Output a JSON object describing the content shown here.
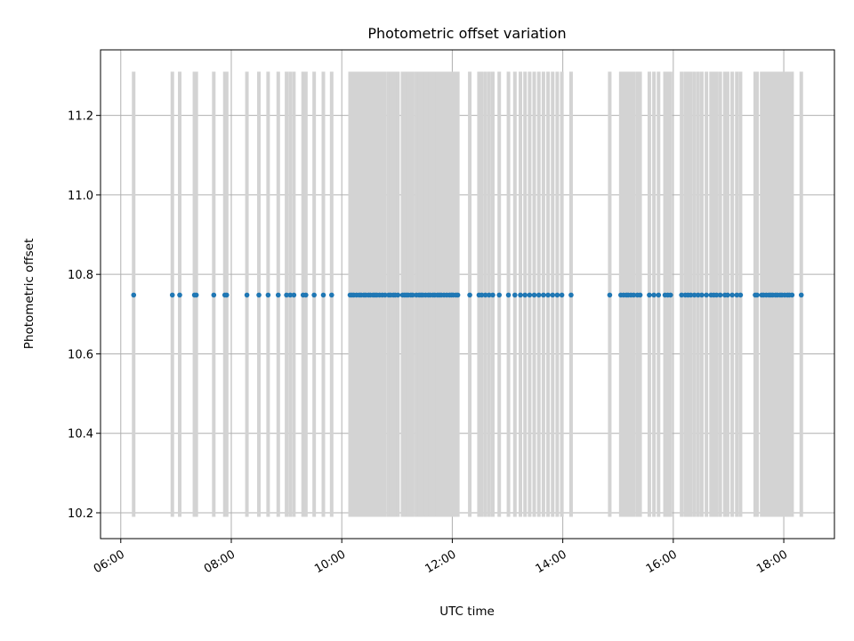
{
  "chart_data": {
    "type": "scatter",
    "title": "Photometric offset variation",
    "xlabel": "UTC time",
    "ylabel": "Photometric offset",
    "x_type": "time",
    "xlim": [
      "05:38",
      "18:55"
    ],
    "ylim": [
      10.135,
      11.365
    ],
    "x_ticks": [
      "06:00",
      "08:00",
      "10:00",
      "12:00",
      "14:00",
      "16:00",
      "18:00"
    ],
    "y_ticks": [
      "10.2",
      "10.4",
      "10.6",
      "10.8",
      "11.0",
      "11.2"
    ],
    "grid": true,
    "error_band": [
      10.19,
      11.31
    ],
    "colors": {
      "points": "#1f77b4",
      "error_bars": "#d3d3d3",
      "grid": "#b0b0b0"
    },
    "series": [
      {
        "y": 10.748,
        "x": [
          "06:14",
          "06:56",
          "07:04",
          "07:20",
          "07:22",
          "07:41",
          "07:53",
          "07:55",
          "08:17",
          "08:30",
          "08:40",
          "08:51",
          "09:00",
          "09:04",
          "09:08",
          "09:18",
          "09:21",
          "09:30",
          "09:40",
          "09:49",
          "10:09",
          "10:11",
          "10:13",
          "10:16",
          "10:19",
          "10:21",
          "10:24",
          "10:26",
          "10:29",
          "10:31",
          "10:34",
          "10:36",
          "10:38",
          "10:41",
          "10:44",
          "10:47",
          "10:51",
          "10:53",
          "10:56",
          "10:58",
          "11:01",
          "11:06",
          "11:08",
          "11:10",
          "11:12",
          "11:15",
          "11:17",
          "11:21",
          "11:24",
          "11:26",
          "11:28",
          "11:31",
          "11:34",
          "11:36",
          "11:39",
          "11:41",
          "11:44",
          "11:46",
          "11:48",
          "11:51",
          "11:54",
          "11:57",
          "11:59",
          "12:01",
          "12:04",
          "12:06",
          "12:19",
          "12:29",
          "12:32",
          "12:36",
          "12:40",
          "12:44",
          "12:51",
          "13:01",
          "13:08",
          "13:14",
          "13:19",
          "13:24",
          "13:29",
          "13:34",
          "13:39",
          "13:44",
          "13:49",
          "13:54",
          "13:59",
          "14:09",
          "14:51",
          "15:03",
          "15:06",
          "15:09",
          "15:11",
          "15:14",
          "15:17",
          "15:21",
          "15:24",
          "15:34",
          "15:39",
          "15:44",
          "15:51",
          "15:54",
          "15:57",
          "16:09",
          "16:13",
          "16:16",
          "16:19",
          "16:23",
          "16:27",
          "16:31",
          "16:36",
          "16:41",
          "16:44",
          "16:47",
          "16:51",
          "16:56",
          "16:59",
          "17:04",
          "17:09",
          "17:13",
          "17:29",
          "17:31",
          "17:36",
          "17:38",
          "17:41",
          "17:44",
          "17:46",
          "17:48",
          "17:51",
          "17:53",
          "17:56",
          "17:58",
          "18:01",
          "18:04",
          "18:06",
          "18:09",
          "18:19"
        ]
      }
    ]
  }
}
